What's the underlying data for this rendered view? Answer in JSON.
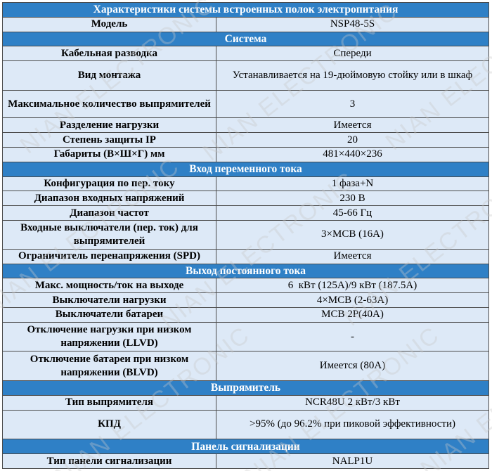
{
  "title": "Характеристики системы встроенных полок электропитания",
  "model": {
    "label": "Модель",
    "value": "NSP48-5S"
  },
  "sections": [
    {
      "name": "Система",
      "rows": [
        {
          "label": "Кабельная разводка",
          "value": "Спереди"
        },
        {
          "label": "Вид монтажа",
          "value": "Устанавливается на 19-дюймовую стойку или в шкаф"
        },
        {
          "label": "Максимальное количество выпрямителей",
          "value": "3"
        },
        {
          "label": "Разделение нагрузки",
          "value": "Имеется"
        },
        {
          "label": "Степень защиты IP",
          "value": "20"
        },
        {
          "label": "Габариты (В×Ш×Г) мм",
          "value": "481×440×236"
        }
      ]
    },
    {
      "name": "Вход переменного тока",
      "rows": [
        {
          "label": "Конфигурация по пер. току",
          "value": "1 фаза+N"
        },
        {
          "label": "Диапазон входных напряжений",
          "value": "230 В"
        },
        {
          "label": "Диапазон частот",
          "value": "45-66 Гц"
        },
        {
          "label": "Входные выключатели (пер. ток) для выпрямителей",
          "value": "3×MCB (16A)"
        },
        {
          "label": "Ограничитель перенапряжения (SPD)",
          "value": "Имеется"
        }
      ]
    },
    {
      "name": "Выход постоянного тока",
      "rows": [
        {
          "label": "Макс. мощность/ток на выходе",
          "value": "6  кВт (125А)/9 кВт (187.5А)"
        },
        {
          "label": "Выключатели нагрузки",
          "value": "4×MCB (2-63A)"
        },
        {
          "label": "Выключатели батареи",
          "value": "MCB 2P(40A)"
        },
        {
          "label": "Отключение нагрузки при низком напряжении (LLVD)",
          "value": "-"
        },
        {
          "label": "Отключение батареи при низком напряжении (BLVD)",
          "value": "Имеется (80А)"
        }
      ]
    },
    {
      "name": "Выпрямитель",
      "rows": [
        {
          "label": "Тип выпрямителя",
          "value": "NCR48U 2 кВт/3 кВт"
        },
        {
          "label": "КПД",
          "value": ">95% (до 96.2% при пиковой эффективности)"
        }
      ]
    },
    {
      "name": "Панель сигнализации",
      "rows": [
        {
          "label": "Тип панели сигнализации",
          "value": "NALP1U"
        }
      ]
    }
  ],
  "watermark": "NIAN ELECTRONIC"
}
